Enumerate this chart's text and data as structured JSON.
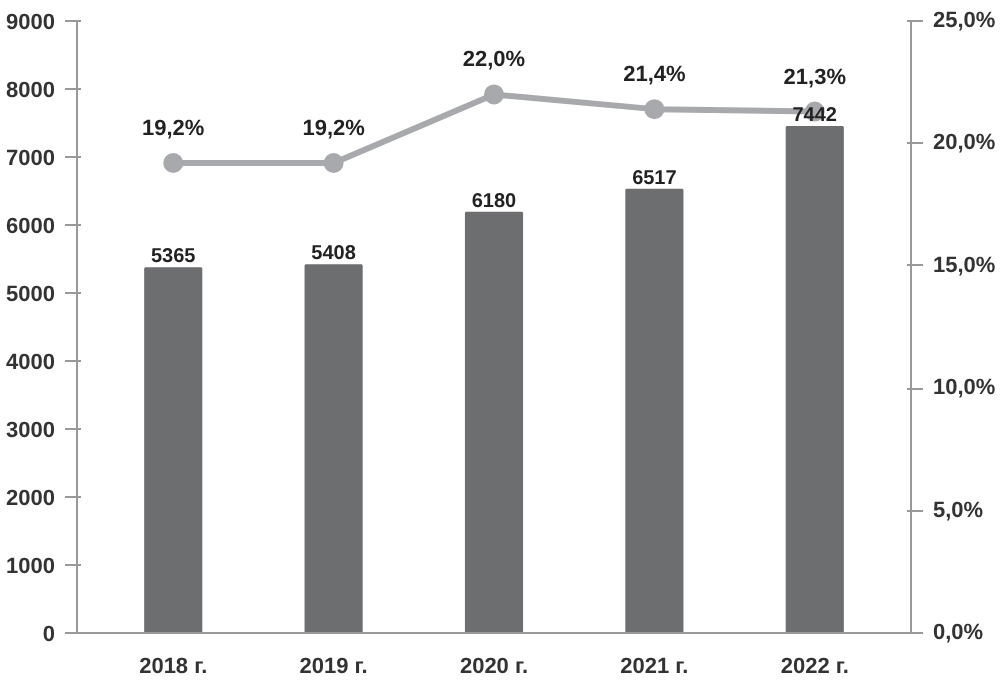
{
  "chart_data": {
    "type": "bar",
    "categories": [
      "2018 г.",
      "2019 г.",
      "2020 г.",
      "2021 г.",
      "2022 г."
    ],
    "series": [
      {
        "color": "#6d6e70",
        "values": [
          5365,
          5408,
          6180,
          6517,
          7442
        ],
        "value_labels": [
          "5365",
          "5408",
          "6180",
          "6517",
          "7442"
        ]
      },
      {
        "type": "line",
        "axis": "y2",
        "color": "#a7a9ac",
        "marker": "circle",
        "values": [
          19.2,
          19.2,
          22.0,
          21.4,
          21.3
        ],
        "value_labels": [
          "19,2%",
          "19,2%",
          "22,0%",
          "21,4%",
          "21,3%"
        ]
      }
    ],
    "ylim": [
      0,
      9000
    ],
    "yticks": [
      0,
      1000,
      2000,
      3000,
      4000,
      5000,
      6000,
      7000,
      8000,
      9000
    ],
    "y2lim": [
      0,
      25
    ],
    "y2ticks": [
      {
        "value": 0,
        "label": "0,0%"
      },
      {
        "value": 5,
        "label": "5,0%"
      },
      {
        "value": 10,
        "label": "10,0%"
      },
      {
        "value": 15,
        "label": "15,0%"
      },
      {
        "value": 20,
        "label": "20,0%"
      },
      {
        "value": 25,
        "label": "25,0%"
      }
    ],
    "grid": false
  }
}
